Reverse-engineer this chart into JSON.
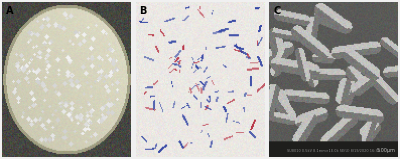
{
  "panels": [
    "A",
    "B",
    "C"
  ],
  "label_color": "#000000",
  "label_fontsize": 7,
  "label_fontweight": "bold",
  "background_color": "#f0f0f0",
  "fig_width": 4.0,
  "fig_height": 1.59,
  "panel_A": {
    "bg_rgb": [
      70,
      70,
      65
    ],
    "agar_rgb": [
      210,
      208,
      185
    ],
    "rim_rgb": [
      160,
      158,
      130
    ],
    "colony_rgb": [
      240,
      238,
      210
    ],
    "n_colonies": 250
  },
  "panel_B": {
    "bg_rgb": [
      235,
      232,
      228
    ],
    "bacteria_blue": [
      40,
      60,
      160
    ],
    "bacteria_red": [
      180,
      40,
      60
    ],
    "n_bacteria": 80
  },
  "panel_C": {
    "bg_rgb": [
      90,
      90,
      88
    ],
    "rod_light": [
      195,
      195,
      192
    ],
    "rod_dark": [
      120,
      120,
      118
    ],
    "scalebar_bg": [
      30,
      30,
      28
    ],
    "n_rods": 35
  }
}
